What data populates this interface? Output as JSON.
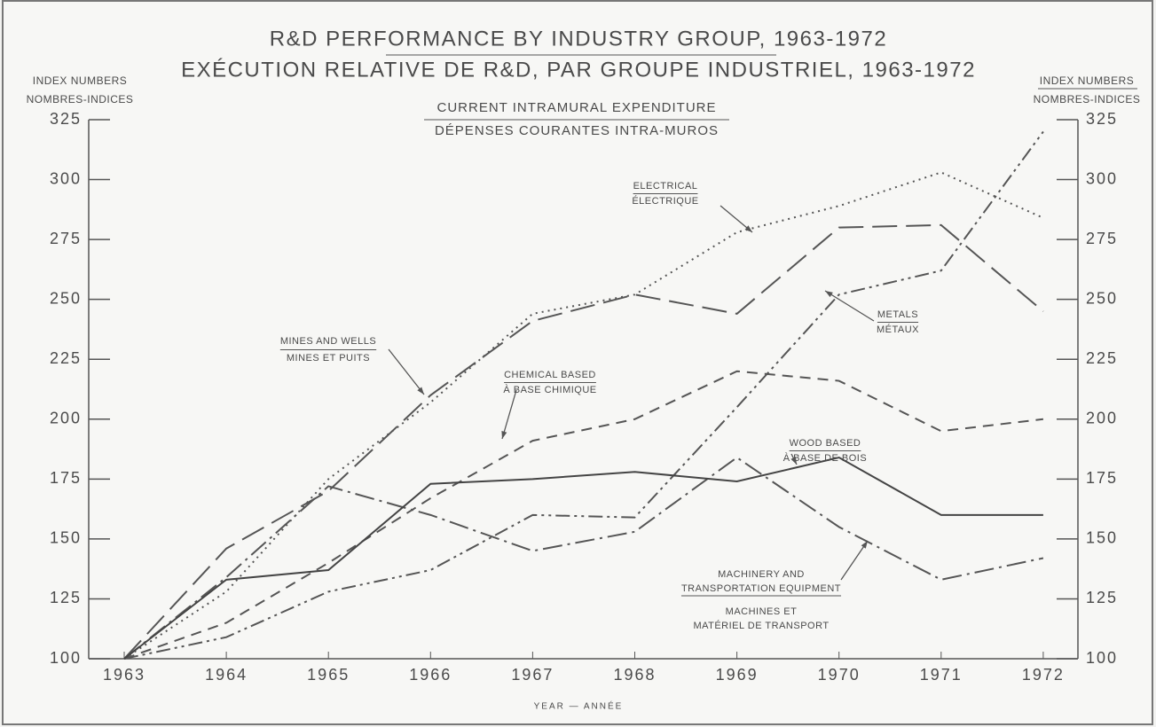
{
  "chart_data": {
    "type": "line",
    "title": [
      "R&D PERFORMANCE BY INDUSTRY GROUP, 1963-1972",
      "EXÉCUTION RELATIVE DE R&D, PAR GROUPE INDUSTRIEL, 1963-1972"
    ],
    "subtitle": [
      "CURRENT INTRAMURAL EXPENDITURE",
      "DÉPENSES COURANTES INTRA-MUROS"
    ],
    "ylabel": [
      "INDEX NUMBERS",
      "NOMBRES-INDICES"
    ],
    "xlabel": "YEAR — ANNÉE",
    "categories": [
      "1963",
      "1964",
      "1965",
      "1966",
      "1967",
      "1968",
      "1969",
      "1970",
      "1971",
      "1972"
    ],
    "ylim": [
      100,
      325
    ],
    "yticks": [
      100,
      125,
      150,
      175,
      200,
      225,
      250,
      275,
      300,
      325
    ],
    "series": [
      {
        "color": "#555555",
        "style": "dotted",
        "values": [
          100,
          128,
          175,
          207,
          244,
          252,
          278,
          289,
          303,
          284
        ]
      },
      {
        "color": "#555555",
        "style": "long-dashed",
        "values": [
          100,
          146,
          170,
          210,
          241,
          252,
          244,
          280,
          281,
          245
        ]
      },
      {
        "color": "#555555",
        "style": "dash-dot-dot",
        "values": [
          100,
          109,
          128,
          137,
          160,
          159,
          205,
          252,
          262,
          320
        ]
      },
      {
        "color": "#555555",
        "style": "dash-dot",
        "values": [
          100,
          134,
          172,
          160,
          145,
          153,
          184,
          155,
          133,
          142
        ]
      },
      {
        "color": "#555555",
        "style": "dashed",
        "values": [
          100,
          115,
          140,
          167,
          191,
          200,
          220,
          216,
          195,
          200
        ]
      },
      {
        "color": "#444444",
        "style": "solid",
        "values": [
          100,
          133,
          137,
          173,
          175,
          178,
          174,
          184,
          160,
          160
        ]
      }
    ],
    "annotations": [
      [
        "ELECTRICAL",
        "ÉLECTRIQUE"
      ],
      [
        "METALS",
        "MÉTAUX"
      ],
      [
        "MINES AND WELLS",
        "MINES ET PUITS"
      ],
      [
        "CHEMICAL BASED",
        "À BASE CHIMIQUE"
      ],
      [
        "WOOD BASED",
        "À BASE DE BOIS"
      ],
      [
        "MACHINERY AND",
        "TRANSPORTATION EQUIPMENT",
        "MACHINES ET",
        "MATÉRIEL DE TRANSPORT"
      ]
    ]
  }
}
